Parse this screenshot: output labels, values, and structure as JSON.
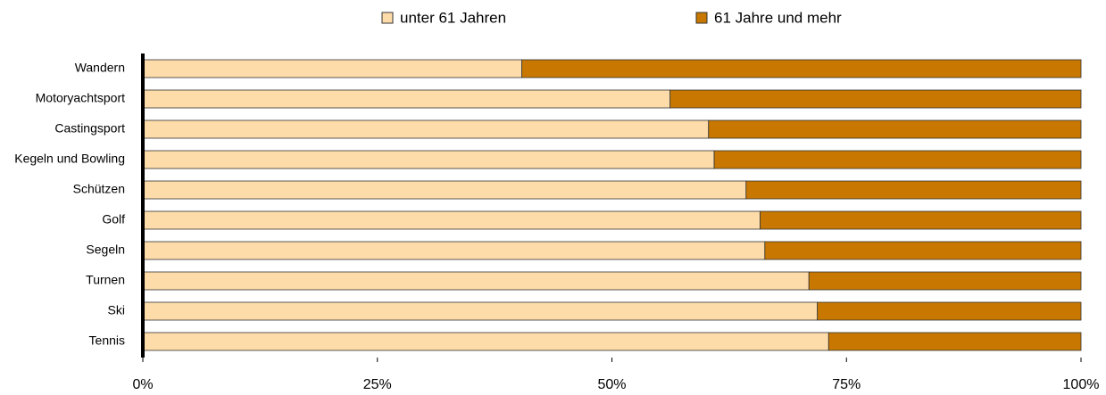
{
  "chart_data": {
    "type": "stacked_bar_horizontal",
    "categories": [
      "Wandern",
      "Motoryachtsport",
      "Castingsport",
      "Kegeln und Bowling",
      "Schützen",
      "Golf",
      "Segeln",
      "Turnen",
      "Ski",
      "Tennis"
    ],
    "series": [
      {
        "name": "unter 61 Jahren",
        "color": "#fddcaa",
        "values": [
          40.4,
          56.2,
          60.3,
          60.9,
          64.3,
          65.8,
          66.3,
          71.0,
          71.9,
          73.1
        ]
      },
      {
        "name": "61 Jahre und mehr",
        "color": "#c87800",
        "values": [
          59.6,
          43.8,
          39.7,
          39.1,
          35.7,
          34.2,
          33.7,
          29.0,
          28.1,
          26.9
        ]
      }
    ],
    "xlim": [
      0,
      100
    ],
    "xticks": [
      {
        "value": 0,
        "label": "0%"
      },
      {
        "value": 25,
        "label": "25%"
      },
      {
        "value": 50,
        "label": "50%"
      },
      {
        "value": 75,
        "label": "75%"
      },
      {
        "value": 100,
        "label": "100%"
      }
    ],
    "legend": "top"
  }
}
